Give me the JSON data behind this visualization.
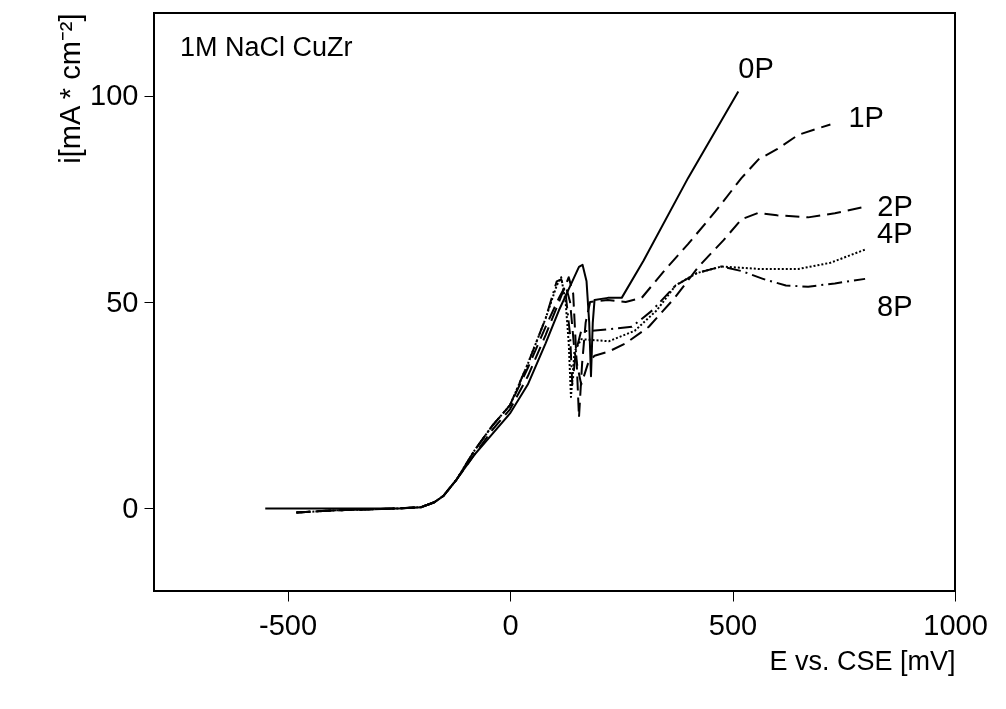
{
  "chart_data": {
    "type": "line",
    "xlabel": "E vs. CSE [mV]",
    "ylabel": "i[mA * cm⁻²]",
    "annotations": [
      "1M NaCl CuZr"
    ],
    "xlim": [
      -800,
      1000
    ],
    "xticks": [
      -500,
      0,
      500,
      1000
    ],
    "ylim": [
      -20,
      120
    ],
    "yticks": [
      0,
      50,
      100
    ],
    "grid": false,
    "series": [
      {
        "name": "0P",
        "color": "#000000",
        "line_style": "solid",
        "x": [
          -550,
          -400,
          -250,
          -200,
          -170,
          -150,
          -120,
          -80,
          -40,
          0,
          40,
          80,
          110,
          140,
          155,
          163,
          172,
          178,
          182,
          186,
          190,
          220,
          251,
          300,
          400,
          513
        ],
        "values": [
          0,
          0,
          0,
          0.3,
          1.5,
          3,
          7,
          13,
          18,
          23,
          30,
          40,
          48,
          55,
          58.5,
          59,
          55,
          45,
          32,
          45,
          50.5,
          51,
          51,
          60,
          80,
          101
        ]
      },
      {
        "name": "1P",
        "color": "#000000",
        "line_style": "dashed",
        "x": [
          -480,
          -400,
          -250,
          -200,
          -170,
          -150,
          -120,
          -80,
          -40,
          0,
          40,
          80,
          110,
          132,
          142,
          150,
          155,
          162,
          170,
          180,
          220,
          260,
          296,
          350,
          400,
          462,
          520,
          558,
          600,
          648,
          720
        ],
        "values": [
          -1,
          -0.5,
          0,
          0.3,
          1.5,
          3,
          7,
          13,
          19,
          24,
          32,
          42,
          50,
          56,
          52,
          35,
          22,
          35,
          45,
          50,
          50.5,
          50,
          51,
          58,
          64,
          72,
          80,
          84.5,
          87,
          90.5,
          93
        ]
      },
      {
        "name": "2P",
        "color": "#000000",
        "line_style": "dashed",
        "x": [
          -480,
          -400,
          -250,
          -200,
          -170,
          -150,
          -120,
          -80,
          -40,
          0,
          40,
          80,
          110,
          125,
          135,
          145,
          160,
          175,
          190,
          222,
          260,
          312,
          370,
          424,
          480,
          520,
          558,
          600,
          670,
          730,
          794
        ],
        "values": [
          -1,
          -0.5,
          0,
          0.3,
          1.5,
          3,
          7,
          14,
          20,
          25,
          34,
          44,
          51,
          54,
          50,
          38,
          30,
          35,
          37,
          38,
          40,
          44,
          51,
          58.6,
          65,
          70,
          71.6,
          71,
          70.5,
          71.5,
          73
        ]
      },
      {
        "name": "4P",
        "color": "#000000",
        "line_style": "dotted",
        "x": [
          -480,
          -400,
          -250,
          -200,
          -170,
          -150,
          -120,
          -80,
          -40,
          0,
          40,
          80,
          105,
          115,
          125,
          132,
          137,
          145,
          160,
          222,
          280,
          330,
          372,
          420,
          475,
          560,
          648,
          720,
          798
        ],
        "values": [
          -1,
          -0.5,
          0,
          0.3,
          1.5,
          3,
          7,
          14,
          20,
          25,
          35,
          46,
          54,
          56,
          50,
          40,
          27,
          38,
          41,
          40.5,
          43,
          48,
          54,
          57,
          58.6,
          58,
          58,
          59.5,
          62.7
        ]
      },
      {
        "name": "8P",
        "color": "#000000",
        "line_style": "dashdot",
        "x": [
          -480,
          -400,
          -250,
          -200,
          -170,
          -150,
          -120,
          -80,
          -40,
          0,
          40,
          80,
          105,
          115,
          125,
          135,
          140,
          148,
          160,
          184,
          274,
          320,
          372,
          420,
          475,
          520,
          574,
          620,
          670,
          730,
          798
        ],
        "values": [
          -1,
          -0.5,
          0,
          0.3,
          1.5,
          3,
          7,
          14,
          20,
          25,
          35,
          46,
          55,
          55.5,
          52,
          42,
          30,
          38,
          43,
          43,
          44,
          48,
          54,
          57,
          58.6,
          57.5,
          55.4,
          54,
          53.7,
          54.5,
          55.6
        ]
      }
    ]
  }
}
